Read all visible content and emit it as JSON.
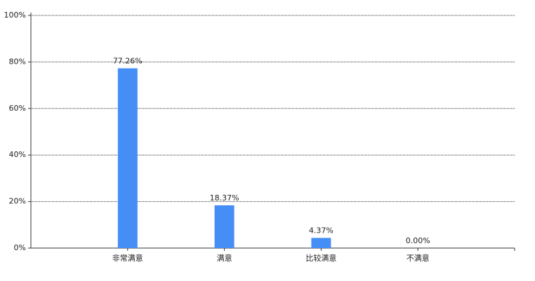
{
  "chart_data": {
    "type": "bar",
    "categories": [
      "非常满意",
      "满意",
      "比较满意",
      "不满意"
    ],
    "values": [
      77.26,
      18.37,
      4.37,
      0
    ],
    "value_labels": [
      "77.26%",
      "18.37%",
      "4.37%",
      "0.00%"
    ],
    "color": "#448ef6",
    "ylim": [
      0,
      100
    ],
    "yticks": [
      {
        "value": 0,
        "label": "0%"
      },
      {
        "value": 20,
        "label": "20%"
      },
      {
        "value": 40,
        "label": "40%"
      },
      {
        "value": 60,
        "label": "60%"
      },
      {
        "value": 80,
        "label": "80%"
      },
      {
        "value": 100,
        "label": "100%"
      }
    ],
    "grid": true
  }
}
